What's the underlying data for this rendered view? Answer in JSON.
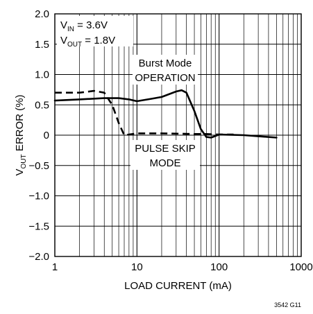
{
  "chart_data": {
    "type": "line",
    "title": "",
    "xlabel": "LOAD CURRENT (mA)",
    "ylabel": {
      "prefix": "V",
      "sub": "OUT",
      "suffix": " ERROR (%)"
    },
    "xscale": "log",
    "xlim": [
      1,
      1000
    ],
    "ylim": [
      -2.0,
      2.0
    ],
    "grid": true,
    "xticks": [
      1,
      10,
      100,
      1000
    ],
    "xtick_labels": [
      "1",
      "10",
      "100",
      "1000"
    ],
    "yticks": [
      2.0,
      1.5,
      1.0,
      0.5,
      0,
      -0.5,
      -1.0,
      -1.5,
      -2.0
    ],
    "ytick_labels": [
      "2.0",
      "1.5",
      "1.0",
      "0.5",
      "0",
      "−0.5",
      "−1.0",
      "−1.5",
      "−2.0"
    ],
    "conditions": [
      {
        "prefix": "V",
        "sub": "IN",
        "suffix": " = 3.6V"
      },
      {
        "prefix": "V",
        "sub": "OUT",
        "suffix": " = 1.8V"
      }
    ],
    "series": [
      {
        "name": "Burst Mode OPERATION",
        "style": "solid",
        "x": [
          1,
          2,
          4,
          6,
          8,
          10,
          15,
          20,
          30,
          35,
          40,
          50,
          60,
          70,
          80,
          100,
          200,
          500
        ],
        "y": [
          0.57,
          0.59,
          0.61,
          0.61,
          0.59,
          0.56,
          0.6,
          0.63,
          0.72,
          0.74,
          0.7,
          0.4,
          0.1,
          -0.03,
          -0.04,
          0.01,
          0.0,
          -0.04
        ]
      },
      {
        "name": "PULSE SKIP MODE",
        "style": "dashed",
        "x": [
          1,
          2,
          3,
          4,
          5,
          6,
          7,
          8,
          10,
          20,
          50,
          70,
          100,
          150
        ],
        "y": [
          0.7,
          0.7,
          0.73,
          0.7,
          0.5,
          0.2,
          0.0,
          0.01,
          0.03,
          0.03,
          0.02,
          0.02,
          0.01,
          0.01
        ]
      }
    ],
    "annotations": [
      {
        "lines": [
          "Burst Mode",
          "OPERATION"
        ]
      },
      {
        "lines": [
          "PULSE SKIP",
          "MODE"
        ]
      }
    ]
  },
  "figure_id": "3542 G11"
}
